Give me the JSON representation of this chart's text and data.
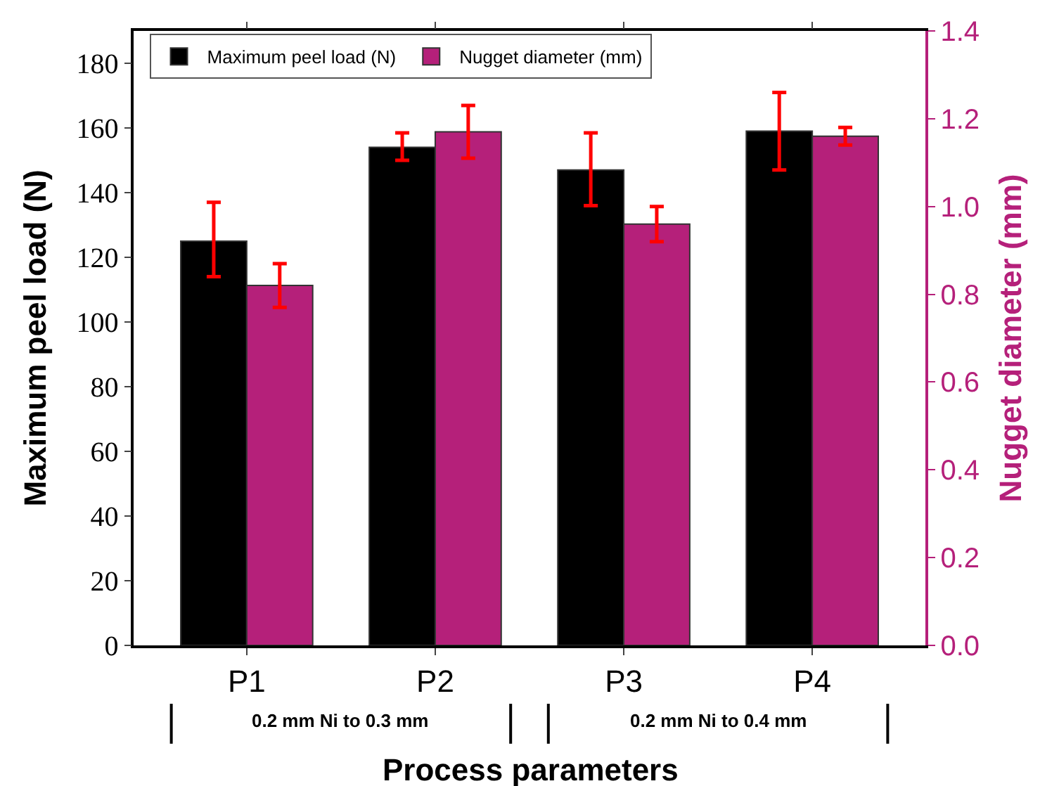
{
  "chart_data": {
    "type": "bar",
    "xlabel": "Process parameters",
    "ylabel": "Maximum peel load (N)",
    "y2label": "Nugget diameter (mm)",
    "categories": [
      "P1",
      "P2",
      "P3",
      "P4"
    ],
    "series": [
      {
        "name": "Maximum peel load (N)",
        "color": "#000000",
        "values": [
          125,
          154,
          147,
          159
        ],
        "errors": [
          [
            114,
            137
          ],
          [
            150,
            158.5
          ],
          [
            136,
            158.5
          ],
          [
            147,
            171
          ]
        ]
      },
      {
        "name": "Nugget diameter (mm)",
        "color": "#b5207a",
        "axis": "y2",
        "values": [
          0.82,
          1.17,
          0.96,
          1.16
        ],
        "errors": [
          [
            0.77,
            0.87
          ],
          [
            1.11,
            1.23
          ],
          [
            0.92,
            1.0
          ],
          [
            1.14,
            1.18
          ]
        ]
      }
    ],
    "ylim": [
      0,
      190
    ],
    "yticks": [
      0,
      20,
      40,
      60,
      80,
      100,
      120,
      140,
      160,
      180
    ],
    "y2lim": [
      0,
      1.4
    ],
    "y2ticks": [
      {
        "value": 0,
        "label": "0.0"
      },
      0.2,
      0.4,
      0.6,
      0.8,
      {
        "value": 1,
        "label": "1.0"
      },
      1.2,
      1.4
    ],
    "annotations": [
      "0.2 mm Ni to 0.3 mm",
      "0.2 mm Ni to 0.4 mm"
    ],
    "grid": false,
    "legend": "top left"
  }
}
